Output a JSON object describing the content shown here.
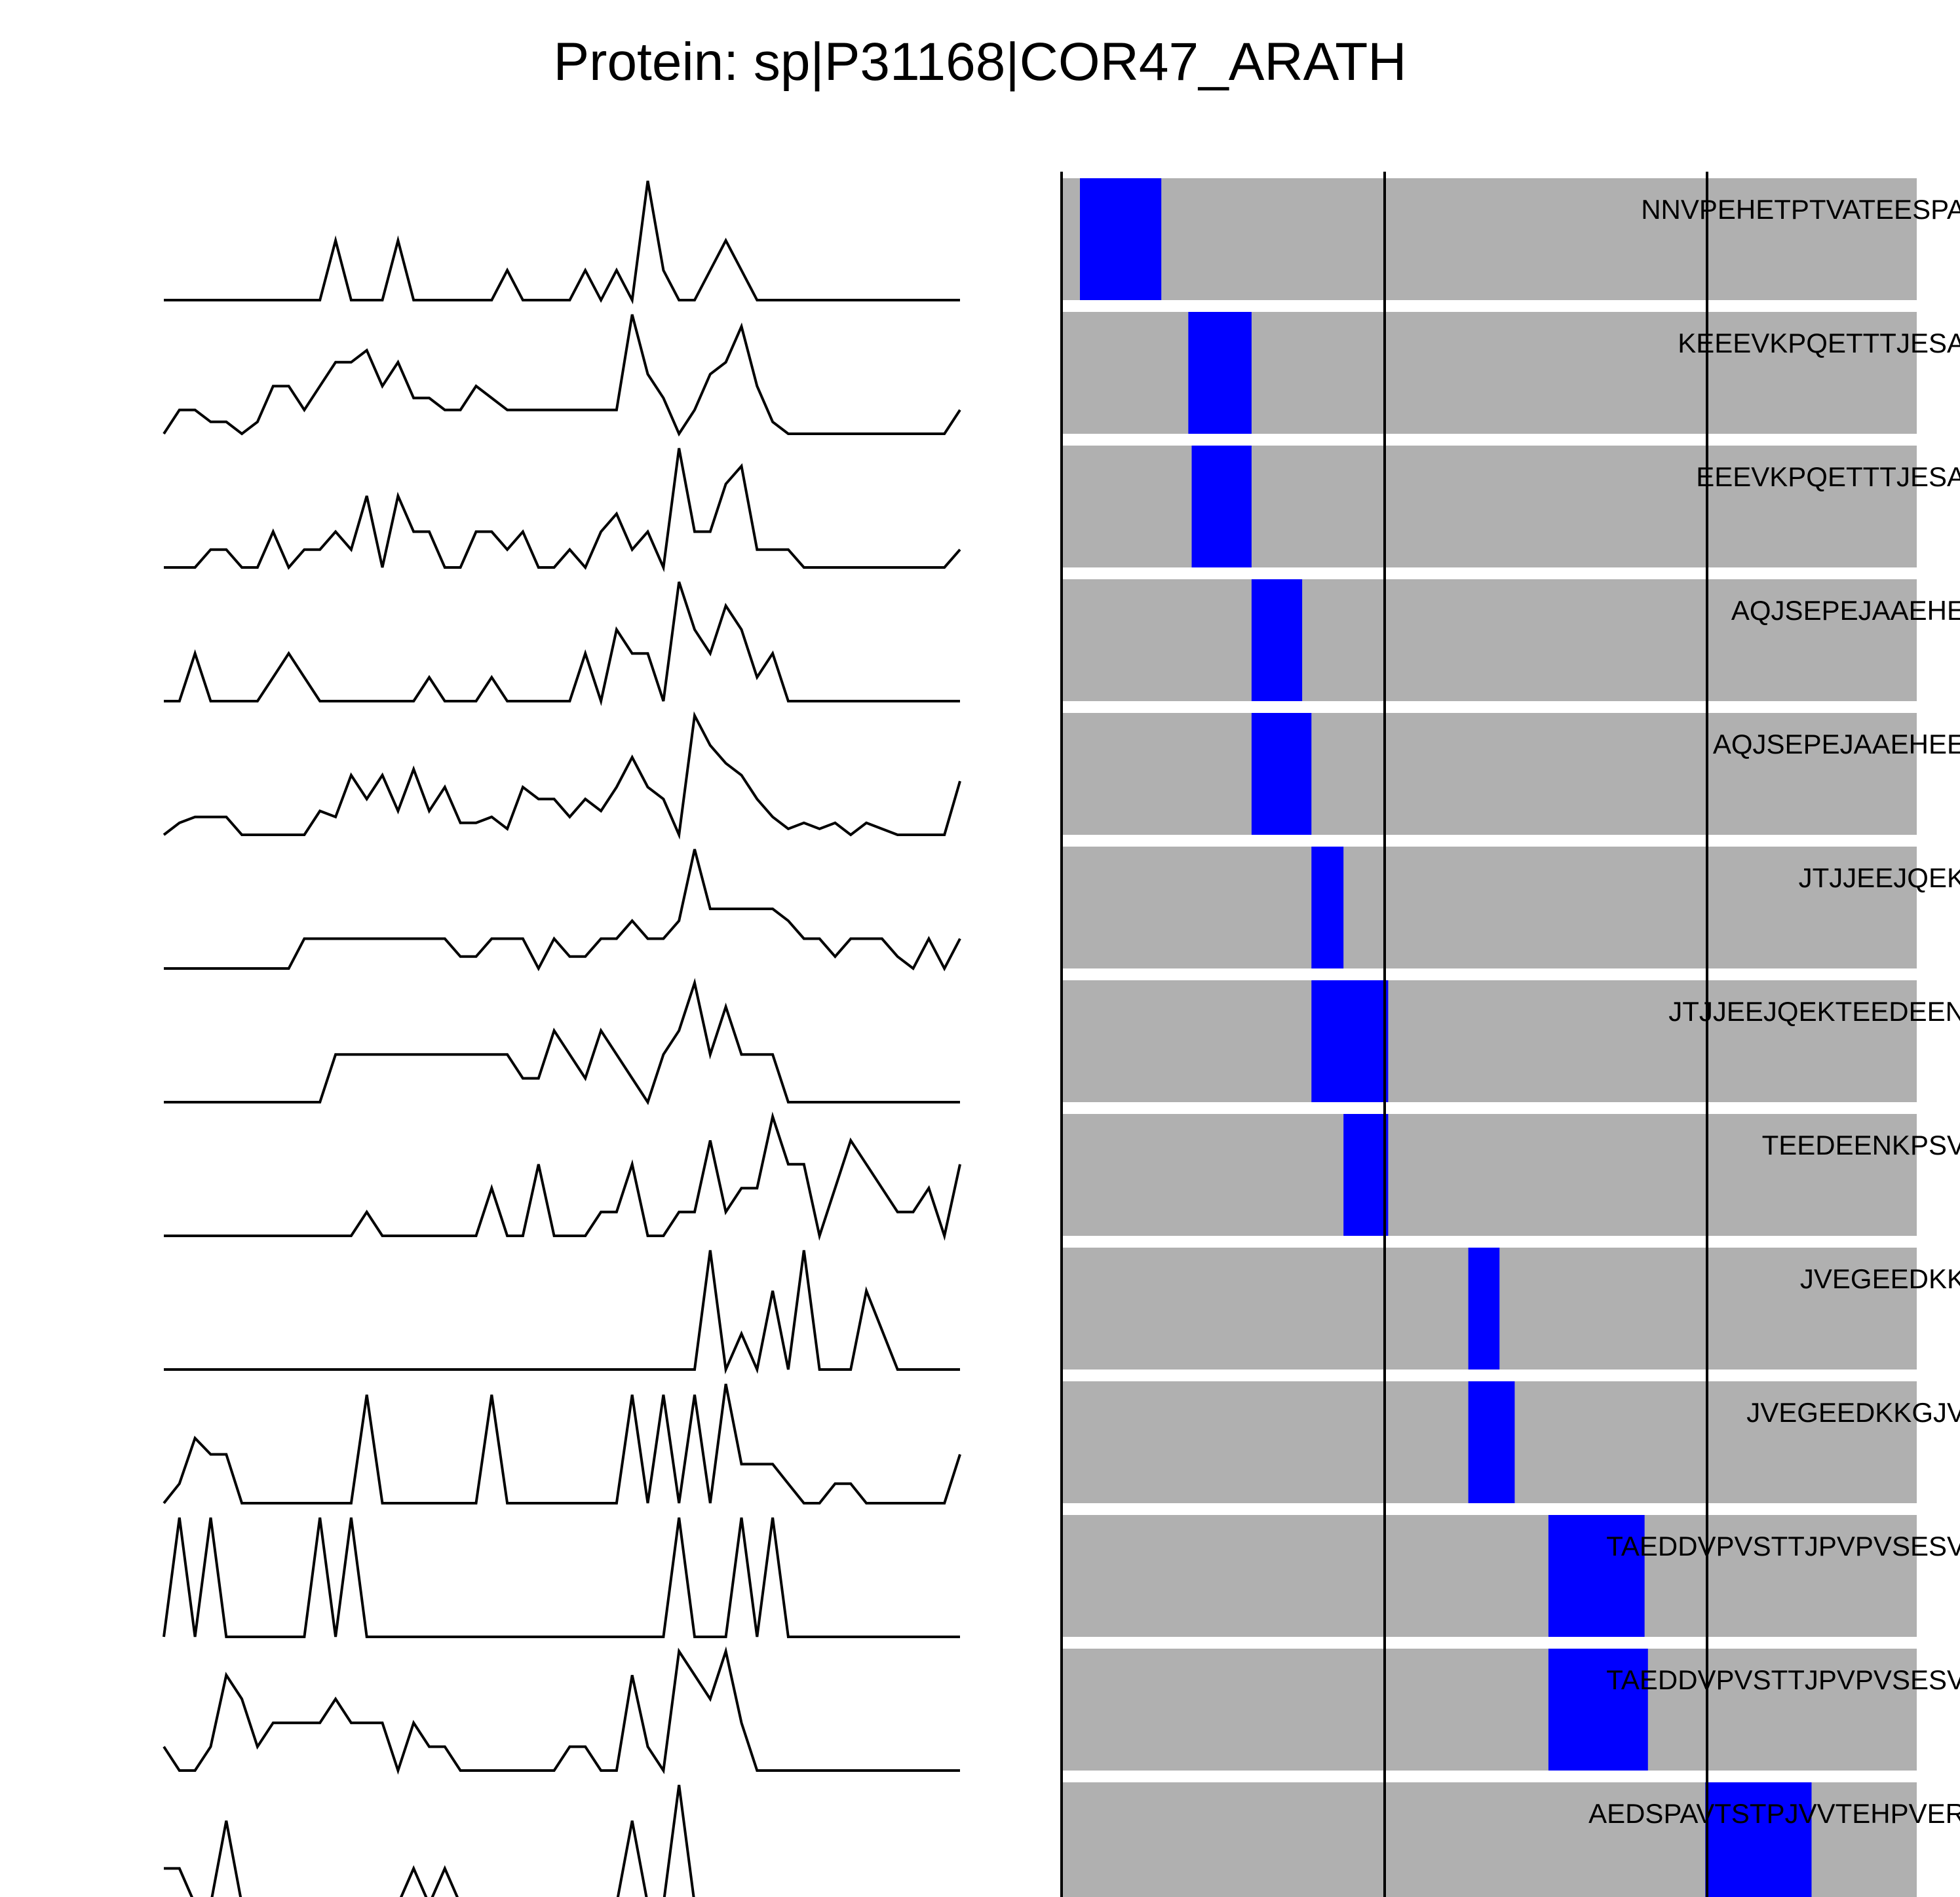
{
  "title": "Protein: sp|P31168|COR47_ARATH",
  "colors": {
    "background": "#ffffff",
    "track_background": "#b0b0b0",
    "highlight": "#0000ff",
    "line": "#000000"
  },
  "chart_data": {
    "type": "line",
    "title": "Protein: sp|P31168|COR47_ARATH",
    "x_axis": "none",
    "y_axis": "none",
    "grid": false,
    "legend": "none",
    "tracks": [
      {
        "label": "NNVPEHETPTVATEESPA",
        "highlight": [
          0.0,
          0.0965
        ],
        "profile": [
          0,
          0,
          0,
          0,
          0,
          0,
          0,
          0,
          0,
          0,
          0,
          1,
          0,
          0,
          0,
          1,
          0,
          0,
          0,
          0,
          0,
          0,
          0.5,
          0,
          0,
          0,
          0,
          0.5,
          0,
          0.5,
          0,
          2,
          0.5,
          0,
          0,
          0.5,
          1,
          0.5,
          0,
          0,
          0,
          0,
          0,
          0,
          0,
          0,
          0,
          0,
          0,
          0,
          0,
          0
        ]
      },
      {
        "label": "KEEEVKPQETTTJESA",
        "highlight": [
          0.1285,
          0.2035
        ],
        "profile": [
          0,
          0.2,
          0.2,
          0.1,
          0.1,
          0,
          0.1,
          0.4,
          0.4,
          0.2,
          0.4,
          0.6,
          0.6,
          0.7,
          0.4,
          0.6,
          0.3,
          0.3,
          0.2,
          0.2,
          0.4,
          0.3,
          0.2,
          0.2,
          0.2,
          0.2,
          0.2,
          0.2,
          0.2,
          0.2,
          1,
          0.5,
          0.3,
          0,
          0.2,
          0.5,
          0.6,
          0.9,
          0.4,
          0.1,
          0,
          0,
          0,
          0,
          0,
          0,
          0,
          0,
          0,
          0,
          0,
          0.2
        ]
      },
      {
        "label": "EEEVKPQETTTJESA",
        "highlight": [
          0.1325,
          0.2035
        ],
        "profile": [
          0,
          0,
          0,
          0.15,
          0.15,
          0,
          0,
          0.3,
          0,
          0.15,
          0.15,
          0.3,
          0.15,
          0.6,
          0,
          0.6,
          0.3,
          0.3,
          0,
          0,
          0.3,
          0.3,
          0.15,
          0.3,
          0,
          0,
          0.15,
          0,
          0.3,
          0.45,
          0.15,
          0.3,
          0,
          1,
          0.3,
          0.3,
          0.7,
          0.85,
          0.15,
          0.15,
          0.15,
          0,
          0,
          0,
          0,
          0,
          0,
          0,
          0,
          0,
          0,
          0.15
        ]
      },
      {
        "label": "AQJSEPEJAAEHE",
        "highlight": [
          0.2035,
          0.2635
        ],
        "profile": [
          0,
          0,
          0.4,
          0,
          0,
          0,
          0,
          0.2,
          0.4,
          0.2,
          0,
          0,
          0,
          0,
          0,
          0,
          0,
          0.2,
          0,
          0,
          0,
          0.2,
          0,
          0,
          0,
          0,
          0,
          0.4,
          0,
          0.6,
          0.4,
          0.4,
          0,
          1,
          0.6,
          0.4,
          0.8,
          0.6,
          0.2,
          0.4,
          0,
          0,
          0,
          0,
          0,
          0,
          0,
          0,
          0,
          0,
          0,
          0
        ]
      },
      {
        "label": "AQJSEPEJAAEHEE",
        "highlight": [
          0.2035,
          0.2745
        ],
        "profile": [
          0,
          0.1,
          0.15,
          0.15,
          0.15,
          0,
          0,
          0,
          0,
          0,
          0.2,
          0.15,
          0.5,
          0.3,
          0.5,
          0.2,
          0.55,
          0.2,
          0.4,
          0.1,
          0.1,
          0.15,
          0.05,
          0.4,
          0.3,
          0.3,
          0.15,
          0.3,
          0.2,
          0.4,
          0.65,
          0.4,
          0.3,
          0,
          1,
          0.75,
          0.6,
          0.5,
          0.3,
          0.15,
          0.05,
          0.1,
          0.05,
          0.1,
          0,
          0.1,
          0.05,
          0,
          0,
          0,
          0,
          0.45
        ]
      },
      {
        "label": "JTJJEEJQEK",
        "highlight": [
          0.2745,
          0.3125
        ],
        "profile": [
          0,
          0,
          0,
          0,
          0,
          0,
          0,
          0,
          0,
          0.25,
          0.25,
          0.25,
          0.25,
          0.25,
          0.25,
          0.25,
          0.25,
          0.25,
          0.25,
          0.1,
          0.1,
          0.25,
          0.25,
          0.25,
          0,
          0.25,
          0.1,
          0.1,
          0.25,
          0.25,
          0.4,
          0.25,
          0.25,
          0.4,
          1,
          0.5,
          0.5,
          0.5,
          0.5,
          0.5,
          0.4,
          0.25,
          0.25,
          0.1,
          0.25,
          0.25,
          0.25,
          0.1,
          0,
          0.25,
          0,
          0.25
        ]
      },
      {
        "label": "JTJJEEJQEKTEEDEEN",
        "highlight": [
          0.2745,
          0.3655
        ],
        "profile": [
          0,
          0,
          0,
          0,
          0,
          0,
          0,
          0,
          0,
          0,
          0,
          0.4,
          0.4,
          0.4,
          0.4,
          0.4,
          0.4,
          0.4,
          0.4,
          0.4,
          0.4,
          0.4,
          0.4,
          0.2,
          0.2,
          0.6,
          0.4,
          0.2,
          0.6,
          0.4,
          0.2,
          0,
          0.4,
          0.6,
          1,
          0.4,
          0.8,
          0.4,
          0.4,
          0.4,
          0,
          0,
          0,
          0,
          0,
          0,
          0,
          0,
          0,
          0,
          0,
          0
        ]
      },
      {
        "label": "TEEDEENKPSV",
        "highlight": [
          0.3125,
          0.3655
        ],
        "profile": [
          0,
          0,
          0,
          0,
          0,
          0,
          0,
          0,
          0,
          0,
          0,
          0,
          0,
          0.2,
          0,
          0,
          0,
          0,
          0,
          0,
          0,
          0.4,
          0,
          0,
          0.6,
          0,
          0,
          0,
          0.2,
          0.2,
          0.6,
          0,
          0,
          0.2,
          0.2,
          0.8,
          0.2,
          0.4,
          0.4,
          1,
          0.6,
          0.6,
          0,
          0.4,
          0.8,
          0.6,
          0.4,
          0.2,
          0.2,
          0.4,
          0,
          0.6
        ]
      },
      {
        "label": "JVEGEEDKK",
        "highlight": [
          0.4605,
          0.4975
        ],
        "profile": [
          0,
          0,
          0,
          0,
          0,
          0,
          0,
          0,
          0,
          0,
          0,
          0,
          0,
          0,
          0,
          0,
          0,
          0,
          0,
          0,
          0,
          0,
          0,
          0,
          0,
          0,
          0,
          0,
          0,
          0,
          0,
          0,
          0,
          0,
          0,
          1,
          0,
          0.3,
          0,
          0.66,
          0,
          1,
          0,
          0,
          0,
          0.66,
          0.33,
          0,
          0,
          0,
          0,
          0
        ]
      },
      {
        "label": "JVEGEEDKKGJV",
        "highlight": [
          0.4605,
          0.5155
        ],
        "profile": [
          0,
          0.18,
          0.6,
          0.45,
          0.45,
          0,
          0,
          0,
          0,
          0,
          0,
          0,
          0,
          1,
          0,
          0,
          0,
          0,
          0,
          0,
          0,
          1,
          0,
          0,
          0,
          0,
          0,
          0,
          0,
          0,
          1,
          0,
          1,
          0,
          1,
          0,
          1.1,
          0.36,
          0.36,
          0.36,
          0.18,
          0,
          0,
          0.18,
          0.18,
          0,
          0,
          0,
          0,
          0,
          0,
          0.45
        ]
      },
      {
        "label": "TAEDDVPVSTTJPVPVSESV",
        "highlight": [
          0.5555,
          0.6695
        ],
        "profile": [
          0,
          1,
          0,
          1,
          0,
          0,
          0,
          0,
          0,
          0,
          1,
          0,
          1,
          0,
          0,
          0,
          0,
          0,
          0,
          0,
          0,
          0,
          0,
          0,
          0,
          0,
          0,
          0,
          0,
          0,
          0,
          0,
          0,
          1,
          0,
          0,
          0,
          1,
          0,
          1,
          0,
          0,
          0,
          0,
          0,
          0,
          0,
          0,
          0,
          0,
          0,
          0
        ]
      },
      {
        "label": "TAEDDVPVSTTJPVPVSESV",
        "highlight": [
          0.5555,
          0.6735
        ],
        "profile": [
          0.2,
          0,
          0,
          0.2,
          0.8,
          0.6,
          0.2,
          0.4,
          0.4,
          0.4,
          0.4,
          0.6,
          0.4,
          0.4,
          0.4,
          0,
          0.4,
          0.2,
          0.2,
          0,
          0,
          0,
          0,
          0,
          0,
          0,
          0.2,
          0.2,
          0,
          0,
          0.8,
          0.2,
          0,
          1,
          0.8,
          0.6,
          1,
          0.4,
          0,
          0,
          0,
          0,
          0,
          0,
          0,
          0,
          0,
          0,
          0,
          0,
          0,
          0
        ]
      },
      {
        "label": "AEDSPAVTSTPJVVTEHPVER",
        "highlight": [
          0.7415,
          0.8675
        ],
        "profile": [
          0.3,
          0.3,
          0,
          0,
          0.7,
          0,
          0,
          0,
          0,
          0,
          0,
          0,
          0,
          0,
          0,
          0,
          0.3,
          0,
          0.3,
          0,
          0,
          0,
          0,
          0,
          0,
          0,
          0,
          0,
          0,
          0,
          0.7,
          0,
          0,
          1,
          0,
          0,
          0,
          0,
          0,
          0,
          0,
          0,
          0,
          0,
          0,
          0,
          0,
          0,
          0,
          0,
          0,
          0
        ]
      }
    ]
  }
}
